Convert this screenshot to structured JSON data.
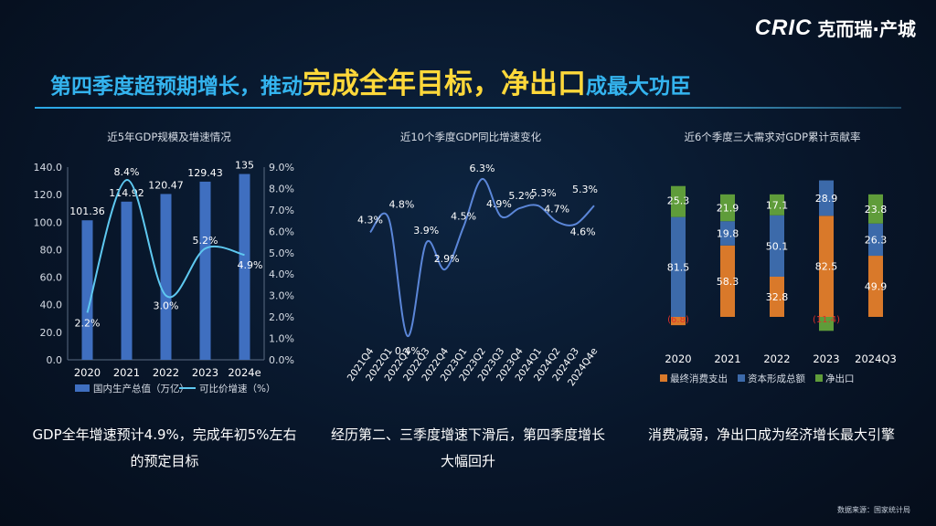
{
  "brand": {
    "logo_text": "CRIC",
    "name": "克而瑞·产城"
  },
  "title": {
    "part1": "第四季度超预期增长，推动",
    "part2": "完成全年目标，净出口",
    "part3": "成最大功臣"
  },
  "colors": {
    "bar_blue": "#3f6fc0",
    "line_cyan": "#5ec8f0",
    "consumption": "#d9792a",
    "capital": "#3c6aaa",
    "netexport": "#5f9c3a",
    "negative_label": "#e0302a"
  },
  "captions": [
    "GDP全年增速预计4.9%，完成年初5%左右的预定目标",
    "经历第二、三季度增速下滑后，第四季度增长大幅回升",
    "消费减弱，净出口成为经济增长最大引擎"
  ],
  "source": "数据来源：国家统计局",
  "chart_data": [
    {
      "type": "bar",
      "title": "近5年GDP规模及增速情况",
      "categories": [
        "2020",
        "2021",
        "2022",
        "2023",
        "2024e"
      ],
      "series": [
        {
          "name": "国内生产总值（万亿）",
          "values": [
            101.36,
            114.92,
            120.47,
            129.43,
            135
          ],
          "labels": [
            "101.36",
            "114.92",
            "120.47",
            "129.43",
            "135"
          ]
        },
        {
          "name": "可比价增速（%）",
          "values": [
            2.2,
            8.4,
            3.0,
            5.2,
            4.9
          ],
          "labels": [
            "2.2%",
            "8.4%",
            "3.0%",
            "5.2%",
            "4.9%"
          ]
        }
      ],
      "ylim": [
        0,
        140
      ],
      "y2lim": [
        0,
        9
      ],
      "yticks": [
        "0.0",
        "20.0",
        "40.0",
        "60.0",
        "80.0",
        "100.0",
        "120.0",
        "140.0"
      ],
      "y2ticks": [
        "0.0%",
        "1.0%",
        "2.0%",
        "3.0%",
        "4.0%",
        "5.0%",
        "6.0%",
        "7.0%",
        "8.0%",
        "9.0%"
      ],
      "legend": "bottom"
    },
    {
      "type": "line",
      "title": "近10个季度GDP同比增速变化",
      "categories": [
        "2021Q4",
        "2022Q1",
        "2022Q2",
        "2022Q3",
        "2022Q4",
        "2023Q1",
        "2023Q2",
        "2023Q3",
        "2023Q4",
        "2024Q1",
        "2024Q2",
        "2024Q3",
        "2024Q4e"
      ],
      "values": [
        4.3,
        4.8,
        0.4,
        3.9,
        2.9,
        4.5,
        6.3,
        4.9,
        5.2,
        5.3,
        4.7,
        4.6,
        5.3
      ],
      "labels": [
        "4.3%",
        "4.8%",
        "0.4%",
        "3.9%",
        "2.9%",
        "4.5%",
        "6.3%",
        "4.9%",
        "5.2%",
        "5.3%",
        "4.7%",
        "4.6%",
        "5.3%"
      ]
    },
    {
      "type": "bar",
      "stacked": true,
      "title": "近6个季度三大需求对GDP累计贡献率",
      "categories": [
        "2020",
        "2021",
        "2022",
        "2023",
        "2024Q3"
      ],
      "series": [
        {
          "name": "最终消费支出",
          "values": [
            -6.8,
            58.3,
            32.8,
            82.5,
            49.9
          ],
          "labels": [
            "(6.8)",
            "58.3",
            "32.8",
            "82.5",
            "49.9"
          ]
        },
        {
          "name": "资本形成总额",
          "values": [
            81.5,
            19.8,
            50.1,
            28.9,
            26.3
          ],
          "labels": [
            "81.5",
            "19.8",
            "50.1",
            "28.9",
            "26.3"
          ]
        },
        {
          "name": "净出口",
          "values": [
            25.3,
            21.9,
            17.1,
            -11.4,
            23.8
          ],
          "labels": [
            "25.3",
            "21.9",
            "17.1",
            "(11.4)",
            "23.8"
          ]
        }
      ],
      "legend": "bottom"
    }
  ]
}
